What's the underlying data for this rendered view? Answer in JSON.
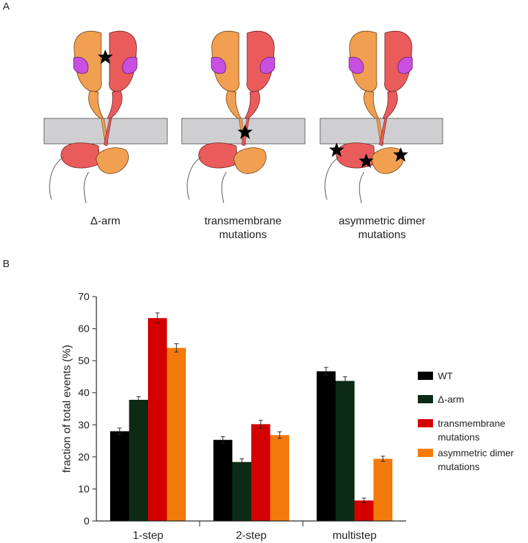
{
  "panel_labels": [
    "A",
    "B"
  ],
  "diagram": {
    "labels": [
      "Δ-arm",
      "transmembrane mutations",
      "asymmetric dimer mutations"
    ]
  },
  "chart_data": {
    "type": "bar",
    "y_label": "fraction of total events (%)",
    "categories": [
      "1-step",
      "2-step",
      "multistep"
    ],
    "series": [
      {
        "name": "WT",
        "color": "#000000",
        "values": [
          28,
          25.3,
          46.7
        ],
        "errors": [
          1.0,
          1.0,
          1.2
        ]
      },
      {
        "name": "Δ-arm",
        "color": "#0d2b14",
        "values": [
          37.8,
          18.4,
          43.7
        ],
        "errors": [
          1.0,
          1.0,
          1.3
        ]
      },
      {
        "name": "transmembrane mutations",
        "color": "#d40000",
        "values": [
          63.3,
          30.2,
          6.4
        ],
        "errors": [
          1.6,
          1.2,
          0.7
        ]
      },
      {
        "name": "asymmetric dimer mutations",
        "color": "#f47a0c",
        "values": [
          54,
          26.8,
          19.4
        ],
        "errors": [
          1.3,
          1.0,
          0.8
        ]
      }
    ],
    "ylim": [
      0,
      70
    ],
    "yticks": [
      0,
      10,
      20,
      30,
      40,
      50,
      60,
      70
    ],
    "legend": "right"
  }
}
